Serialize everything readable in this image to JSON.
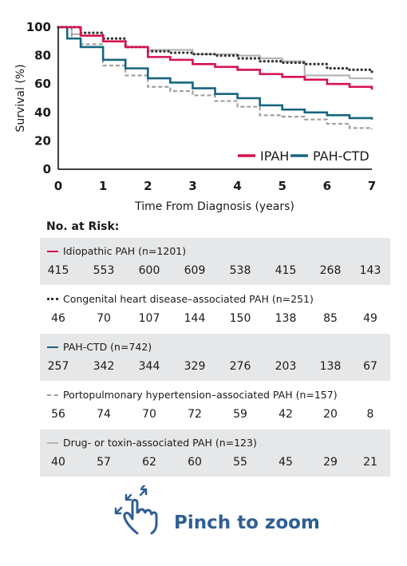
{
  "chart_data": {
    "type": "line",
    "xlabel": "Time From Diagnosis (years)",
    "ylabel": "Survival (%)",
    "xlim": [
      0,
      7
    ],
    "ylim": [
      0,
      100
    ],
    "x_ticks": [
      "0",
      "1",
      "2",
      "3",
      "4",
      "5",
      "6",
      "7"
    ],
    "y_ticks": [
      "0",
      "20",
      "40",
      "60",
      "80",
      "100"
    ],
    "legend": {
      "placement": "bottom-right",
      "entries": [
        "IPAH",
        "PAH-CTD"
      ]
    },
    "series": [
      {
        "name": "IPAH",
        "color": "#d5134f",
        "dash": "solid",
        "x": [
          0,
          0.5,
          1,
          1.5,
          2,
          2.5,
          3,
          3.5,
          4,
          4.5,
          5,
          5.5,
          6,
          6.5,
          7
        ],
        "y": [
          100,
          94,
          90,
          86,
          79,
          77,
          74,
          72,
          70,
          67,
          65,
          63,
          60,
          58,
          56
        ]
      },
      {
        "name": "PAH-CTD",
        "color": "#17657f",
        "dash": "solid",
        "x": [
          0,
          0.2,
          0.5,
          1,
          1.5,
          2,
          2.5,
          3,
          3.5,
          4,
          4.5,
          5,
          5.5,
          6,
          6.5,
          7
        ],
        "y": [
          100,
          92,
          86,
          77,
          71,
          64,
          61,
          57,
          53,
          50,
          45,
          42,
          40,
          38,
          36,
          35
        ]
      },
      {
        "color": "#333333",
        "dash": "dotted",
        "x": [
          0,
          0.5,
          1,
          1.5,
          2,
          2.5,
          3,
          3.5,
          4,
          4.5,
          5,
          5.5,
          6,
          6.5,
          7
        ],
        "y": [
          100,
          96,
          92,
          86,
          83,
          82,
          81,
          80,
          78,
          76,
          75,
          74,
          71,
          70,
          68
        ]
      },
      {
        "color": "#a0a0a0",
        "dash": "dashed",
        "x": [
          0,
          0.3,
          0.5,
          1,
          1.5,
          2,
          2.5,
          3,
          3.5,
          4,
          4.5,
          5,
          5.5,
          6,
          6.5,
          7
        ],
        "y": [
          100,
          92,
          88,
          73,
          66,
          58,
          55,
          52,
          48,
          44,
          38,
          37,
          35,
          32,
          29,
          28
        ]
      },
      {
        "color": "#b5b5b5",
        "dash": "solid",
        "x": [
          0,
          0.3,
          0.5,
          1,
          1.5,
          2,
          2.5,
          3,
          3.5,
          4,
          4.5,
          5,
          5.5,
          6,
          6.5,
          7
        ],
        "y": [
          100,
          95,
          94,
          90,
          86,
          84,
          84,
          81,
          81,
          80,
          78,
          76,
          66,
          66,
          64,
          63
        ]
      }
    ]
  },
  "risk_table": {
    "title": "No. at Risk:",
    "rows": [
      {
        "label": "Idiopathic PAH (n=1201)",
        "color": "#d5134f",
        "style": "solid",
        "values": [
          "415",
          "553",
          "600",
          "609",
          "538",
          "415",
          "268",
          "143"
        ]
      },
      {
        "label": "Congenital heart disease–associated PAH (n=251)",
        "color": "#333333",
        "style": "dotted",
        "values": [
          "46",
          "70",
          "107",
          "144",
          "150",
          "138",
          "85",
          "49"
        ]
      },
      {
        "label": "PAH-CTD (n=742)",
        "color": "#17657f",
        "style": "solid",
        "values": [
          "257",
          "342",
          "344",
          "329",
          "276",
          "203",
          "138",
          "67"
        ]
      },
      {
        "label": "Portopulmonary hypertension–associated PAH (n=157)",
        "color": "#a0a0a0",
        "style": "dashed",
        "values": [
          "56",
          "74",
          "70",
          "72",
          "59",
          "42",
          "20",
          "8"
        ]
      },
      {
        "label": "Drug- or toxin-associated PAH (n=123)",
        "color": "#b5b5b5",
        "style": "solid",
        "values": [
          "40",
          "57",
          "62",
          "60",
          "55",
          "45",
          "29",
          "21"
        ]
      }
    ]
  },
  "pinch": {
    "label": "Pinch to zoom",
    "icon": "pinch-hand-icon",
    "color": "#2f5f94"
  }
}
